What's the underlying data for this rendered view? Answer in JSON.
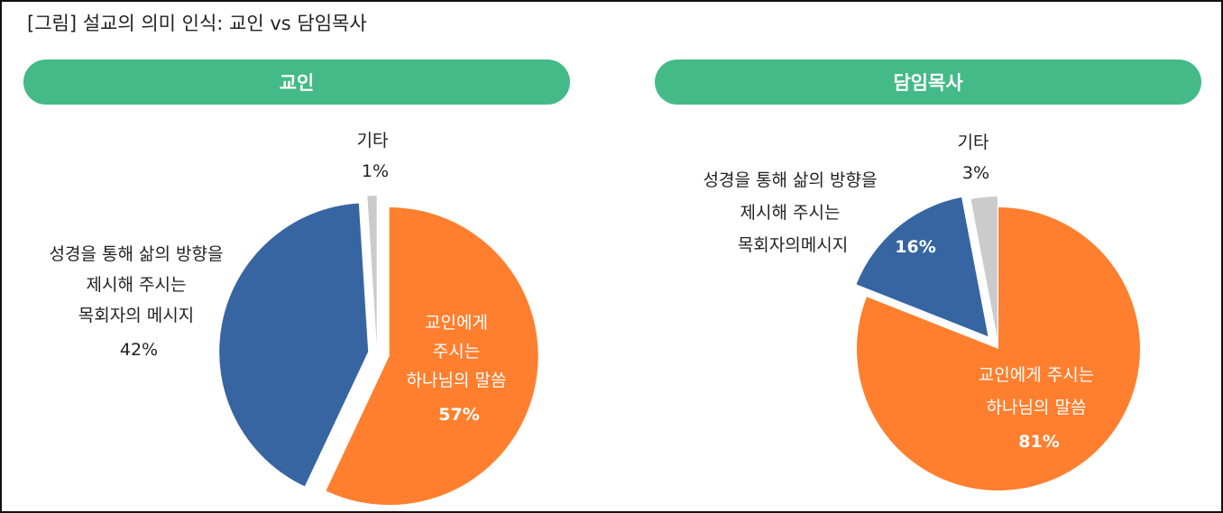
{
  "figure": {
    "title": "[그림] 설교의 의미 인식: 교인 vs 담임목사",
    "header_color": "#43BA87"
  },
  "chart_data": [
    {
      "type": "pie",
      "title": "교인",
      "slices": [
        {
          "label": "교인에게 주시는 하나님의 말씀",
          "value": 57,
          "display": "57%",
          "color": "#FF7F2F"
        },
        {
          "label": "성경을 통해 삶의 방향을 제시해 주시는 목회자의 메시지",
          "value": 42,
          "display": "42%",
          "color": "#3765A2"
        },
        {
          "label": "기타",
          "value": 1,
          "display": "1%",
          "color": "#CBCBCB"
        }
      ]
    },
    {
      "type": "pie",
      "title": "담임목사",
      "slices": [
        {
          "label": "교인에게 주시는 하나님의 말씀",
          "value": 81,
          "display": "81%",
          "color": "#FF7F2F"
        },
        {
          "label": "성경을 통해 삶의 방향을 제시해 주시는 목회자의메시지",
          "value": 16,
          "display": "16%",
          "color": "#3765A2"
        },
        {
          "label": "기타",
          "value": 3,
          "display": "3%",
          "color": "#CBCBCB"
        }
      ]
    }
  ],
  "labels": {
    "left": {
      "main_lines": [
        "교인에게",
        "주시는",
        "하나님의 말씀"
      ],
      "main_pct": "57%",
      "blue_lines": [
        "성경을 통해 삶의 방향을",
        "제시해 주시는",
        "목회자의 메시지"
      ],
      "blue_pct": "42%",
      "other_name": "기타",
      "other_pct": "1%"
    },
    "right": {
      "main_lines": [
        "교인에게 주시는",
        "하나님의 말씀"
      ],
      "main_pct": "81%",
      "blue_lines": [
        "성경을 통해 삶의 방향을",
        "제시해 주시는",
        "목회자의메시지"
      ],
      "blue_pct": "16%",
      "other_name": "기타",
      "other_pct": "3%"
    }
  }
}
